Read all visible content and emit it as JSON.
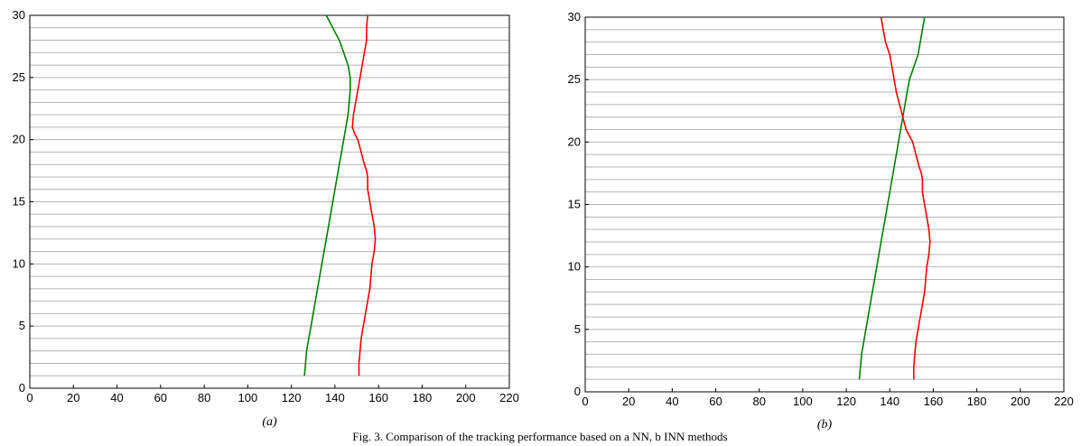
{
  "caption": "Fig. 3. Comparison of the tracking performance based on a NN, b INN methods",
  "chart_data": [
    {
      "type": "line",
      "sublabel": "(a)",
      "xlim": [
        0,
        220
      ],
      "ylim": [
        0,
        30
      ],
      "xticks": [
        0,
        20,
        40,
        60,
        80,
        100,
        120,
        140,
        160,
        180,
        200,
        220
      ],
      "yticks": [
        0,
        5,
        10,
        15,
        20,
        25,
        30
      ],
      "grid": "horizontal lines at every integer y",
      "series": [
        {
          "color": "#008000",
          "x": [
            126,
            126.5,
            127,
            128,
            129,
            130,
            131,
            132,
            133,
            134,
            135,
            136,
            137,
            138,
            139,
            140,
            141,
            142,
            143,
            144,
            145,
            146,
            146.5,
            147,
            147,
            146.5,
            146,
            145,
            144,
            143,
            142,
            140.5,
            139,
            137.5,
            136
          ],
          "y": [
            1,
            2,
            3,
            4,
            5,
            6,
            7,
            8,
            9,
            10,
            11,
            12,
            13,
            14,
            15,
            16,
            17,
            18,
            19,
            20,
            21,
            22,
            23,
            24,
            25,
            25.5,
            26,
            26.5,
            27,
            27.5,
            28,
            28.5,
            29,
            29.5,
            30
          ]
        },
        {
          "color": "#ff0000",
          "x": [
            151,
            151,
            151.5,
            152,
            153,
            154,
            155,
            156,
            156.5,
            157,
            157.5,
            158,
            158.5,
            158,
            157,
            156,
            155,
            155,
            154.5,
            153.5,
            152,
            150.5,
            149,
            148,
            148.5,
            149.5,
            150.5,
            151.5,
            152.5,
            153,
            153.5,
            154,
            154.5,
            154.5,
            155
          ],
          "y": [
            1,
            2,
            3,
            4,
            5,
            6,
            7,
            8,
            9,
            10,
            10.5,
            11,
            12,
            13,
            14,
            15,
            16,
            17,
            17.5,
            18,
            19,
            20,
            20.5,
            21,
            22,
            23,
            24,
            25,
            26,
            26.5,
            27,
            27.5,
            28,
            29,
            30
          ]
        }
      ]
    },
    {
      "type": "line",
      "sublabel": "(b)",
      "xlim": [
        0,
        220
      ],
      "ylim": [
        0,
        30
      ],
      "xticks": [
        0,
        20,
        40,
        60,
        80,
        100,
        120,
        140,
        160,
        180,
        200,
        220
      ],
      "yticks": [
        0,
        5,
        10,
        15,
        20,
        25,
        30
      ],
      "grid": "horizontal lines at every integer y",
      "series": [
        {
          "color": "#008000",
          "x": [
            126,
            126.5,
            127,
            128,
            129,
            130,
            131,
            132,
            133,
            134,
            135,
            136,
            137,
            138,
            139,
            140,
            141,
            142,
            143,
            144,
            145,
            146,
            147,
            148,
            149,
            150,
            151,
            152,
            153,
            153.5,
            154,
            154.5,
            155,
            155.5,
            156
          ],
          "y": [
            1,
            2,
            3,
            4,
            5,
            6,
            7,
            8,
            9,
            10,
            11,
            12,
            13,
            14,
            15,
            16,
            17,
            18,
            19,
            20,
            21,
            22,
            23,
            24,
            25,
            25.5,
            26,
            26.5,
            27,
            27.5,
            28,
            28.5,
            29,
            29.5,
            30
          ]
        },
        {
          "color": "#ff0000",
          "x": [
            151,
            151,
            151.5,
            152,
            153,
            154,
            155,
            156,
            156.5,
            157,
            157.5,
            158,
            158.5,
            158,
            157,
            156,
            155,
            155,
            154.5,
            153.5,
            152,
            150.5,
            149,
            147.5,
            146,
            144.5,
            143,
            142,
            141,
            140.5,
            140,
            139,
            138,
            137,
            136
          ],
          "y": [
            1,
            2,
            3,
            4,
            5,
            6,
            7,
            8,
            9,
            10,
            10.5,
            11,
            12,
            13,
            14,
            15,
            16,
            17,
            17.5,
            18,
            19,
            20,
            20.5,
            21,
            22,
            23,
            24,
            25,
            26,
            26.5,
            27,
            27.5,
            28,
            29,
            30
          ]
        }
      ]
    }
  ]
}
